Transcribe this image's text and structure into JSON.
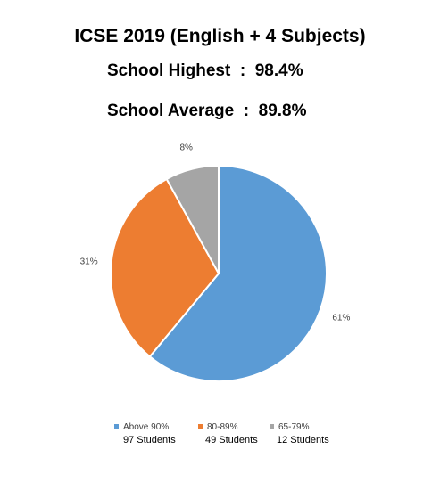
{
  "header": {
    "title": "ICSE 2019 (English + 4 Subjects)",
    "highest": "School Highest  :  98.4%",
    "average": "School Average  :  89.8%"
  },
  "chart_data": {
    "type": "pie",
    "categories": [
      "Above 90%",
      "80-89%",
      "65-79%"
    ],
    "values": [
      61,
      31,
      8
    ],
    "labels": [
      "61%",
      "31%",
      "8%"
    ],
    "colors": [
      "#5B9BD5",
      "#ED7D31",
      "#A5A5A5"
    ],
    "legend_placement": "bottom",
    "legend": [
      {
        "label": "Above 90%",
        "sub": "97 Students"
      },
      {
        "label": "80-89%",
        "sub": "49 Students"
      },
      {
        "label": "65-79%",
        "sub": "12 Students"
      }
    ]
  }
}
